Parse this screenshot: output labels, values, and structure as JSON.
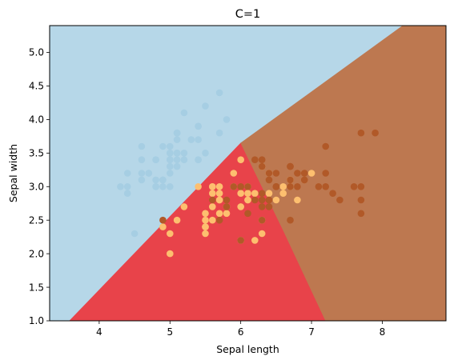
{
  "chart_data": {
    "type": "scatter",
    "title": "C=1",
    "xlabel": "Sepal length",
    "ylabel": "Sepal width",
    "xlim": [
      3.3,
      8.9
    ],
    "ylim": [
      1.0,
      5.4
    ],
    "xticks": [
      "4",
      "5",
      "6",
      "7",
      "8"
    ],
    "yticks": [
      "1.0",
      "1.5",
      "2.0",
      "2.5",
      "3.0",
      "3.5",
      "4.0",
      "4.5",
      "5.0"
    ],
    "grid": false,
    "regions": [
      {
        "class": "setosa",
        "color": "#b6d7e8",
        "polygon": [
          [
            3.3,
            1.0
          ],
          [
            3.3,
            5.4
          ],
          [
            4.32,
            5.4
          ],
          [
            8.29,
            5.4
          ],
          [
            6.0,
            3.65
          ],
          [
            3.58,
            1.0
          ]
        ]
      },
      {
        "class": "versicolor",
        "color": "#e8434a",
        "polygon": [
          [
            3.58,
            1.0
          ],
          [
            6.0,
            3.65
          ],
          [
            6.6,
            2.35
          ],
          [
            7.2,
            1.0
          ]
        ]
      },
      {
        "class": "virginica",
        "color": "#bd7850",
        "polygon": [
          [
            6.0,
            3.65
          ],
          [
            8.29,
            5.4
          ],
          [
            8.9,
            5.4
          ],
          [
            8.9,
            1.0
          ],
          [
            7.2,
            1.0
          ],
          [
            6.6,
            2.35
          ]
        ]
      }
    ],
    "series": [
      {
        "class": "setosa",
        "color": "#a6cee3",
        "points": [
          [
            5.1,
            3.5
          ],
          [
            4.9,
            3.0
          ],
          [
            4.7,
            3.2
          ],
          [
            4.6,
            3.1
          ],
          [
            5.0,
            3.6
          ],
          [
            5.4,
            3.9
          ],
          [
            4.6,
            3.4
          ],
          [
            5.0,
            3.4
          ],
          [
            4.4,
            2.9
          ],
          [
            4.9,
            3.1
          ],
          [
            5.4,
            3.7
          ],
          [
            4.8,
            3.4
          ],
          [
            4.8,
            3.0
          ],
          [
            4.3,
            3.0
          ],
          [
            5.8,
            4.0
          ],
          [
            5.7,
            4.4
          ],
          [
            5.4,
            3.9
          ],
          [
            5.1,
            3.5
          ],
          [
            5.7,
            3.8
          ],
          [
            5.1,
            3.8
          ],
          [
            5.4,
            3.4
          ],
          [
            5.1,
            3.7
          ],
          [
            4.6,
            3.6
          ],
          [
            5.1,
            3.3
          ],
          [
            4.8,
            3.4
          ],
          [
            5.0,
            3.0
          ],
          [
            5.0,
            3.4
          ],
          [
            5.2,
            3.5
          ],
          [
            5.2,
            3.4
          ],
          [
            4.7,
            3.2
          ],
          [
            4.8,
            3.1
          ],
          [
            5.4,
            3.4
          ],
          [
            5.2,
            4.1
          ],
          [
            5.5,
            4.2
          ],
          [
            4.9,
            3.1
          ],
          [
            5.0,
            3.2
          ],
          [
            5.5,
            3.5
          ],
          [
            4.9,
            3.6
          ],
          [
            4.4,
            3.0
          ],
          [
            5.1,
            3.4
          ],
          [
            5.0,
            3.5
          ],
          [
            4.5,
            2.3
          ],
          [
            4.4,
            3.2
          ],
          [
            5.0,
            3.5
          ],
          [
            5.1,
            3.8
          ],
          [
            4.8,
            3.0
          ],
          [
            5.1,
            3.8
          ],
          [
            4.6,
            3.2
          ],
          [
            5.3,
            3.7
          ],
          [
            5.0,
            3.3
          ]
        ]
      },
      {
        "class": "versicolor",
        "color": "#fdbf6f",
        "points": [
          [
            7.0,
            3.2
          ],
          [
            6.4,
            3.2
          ],
          [
            6.9,
            3.1
          ],
          [
            5.5,
            2.3
          ],
          [
            6.5,
            2.8
          ],
          [
            5.7,
            2.8
          ],
          [
            6.3,
            3.3
          ],
          [
            4.9,
            2.4
          ],
          [
            6.6,
            2.9
          ],
          [
            5.2,
            2.7
          ],
          [
            5.0,
            2.0
          ],
          [
            5.9,
            3.0
          ],
          [
            6.0,
            2.2
          ],
          [
            6.1,
            2.9
          ],
          [
            5.6,
            2.9
          ],
          [
            6.7,
            3.1
          ],
          [
            5.6,
            3.0
          ],
          [
            5.8,
            2.7
          ],
          [
            6.2,
            2.2
          ],
          [
            5.6,
            2.5
          ],
          [
            5.9,
            3.2
          ],
          [
            6.1,
            2.8
          ],
          [
            6.3,
            2.5
          ],
          [
            6.1,
            2.8
          ],
          [
            6.4,
            2.9
          ],
          [
            6.6,
            3.0
          ],
          [
            6.8,
            2.8
          ],
          [
            6.7,
            3.0
          ],
          [
            6.0,
            2.9
          ],
          [
            5.7,
            2.6
          ],
          [
            5.5,
            2.4
          ],
          [
            5.5,
            2.4
          ],
          [
            5.8,
            2.7
          ],
          [
            6.0,
            2.7
          ],
          [
            5.4,
            3.0
          ],
          [
            6.0,
            3.4
          ],
          [
            6.7,
            3.1
          ],
          [
            6.3,
            2.3
          ],
          [
            5.6,
            3.0
          ],
          [
            5.5,
            2.5
          ],
          [
            5.5,
            2.6
          ],
          [
            6.1,
            3.0
          ],
          [
            5.8,
            2.6
          ],
          [
            5.0,
            2.3
          ],
          [
            5.6,
            2.7
          ],
          [
            5.7,
            3.0
          ],
          [
            5.7,
            2.9
          ],
          [
            6.2,
            2.9
          ],
          [
            5.1,
            2.5
          ],
          [
            5.7,
            2.8
          ]
        ]
      },
      {
        "class": "virginica",
        "color": "#b15928",
        "points": [
          [
            6.3,
            3.3
          ],
          [
            5.8,
            2.7
          ],
          [
            7.1,
            3.0
          ],
          [
            6.3,
            2.9
          ],
          [
            6.5,
            3.0
          ],
          [
            7.6,
            3.0
          ],
          [
            4.9,
            2.5
          ],
          [
            7.3,
            2.9
          ],
          [
            6.7,
            2.5
          ],
          [
            7.2,
            3.6
          ],
          [
            6.5,
            3.2
          ],
          [
            6.4,
            2.7
          ],
          [
            6.8,
            3.0
          ],
          [
            5.7,
            2.5
          ],
          [
            5.8,
            2.8
          ],
          [
            6.4,
            3.2
          ],
          [
            6.5,
            3.0
          ],
          [
            7.7,
            3.8
          ],
          [
            7.7,
            2.6
          ],
          [
            6.0,
            2.2
          ],
          [
            6.9,
            3.2
          ],
          [
            5.6,
            2.8
          ],
          [
            7.7,
            2.8
          ],
          [
            6.3,
            2.7
          ],
          [
            6.7,
            3.3
          ],
          [
            7.2,
            3.2
          ],
          [
            6.2,
            2.8
          ],
          [
            6.1,
            3.0
          ],
          [
            6.4,
            2.8
          ],
          [
            7.2,
            3.0
          ],
          [
            7.4,
            2.8
          ],
          [
            7.9,
            3.8
          ],
          [
            6.4,
            2.8
          ],
          [
            6.3,
            2.8
          ],
          [
            6.1,
            2.6
          ],
          [
            7.7,
            3.0
          ],
          [
            6.3,
            3.4
          ],
          [
            6.4,
            3.1
          ],
          [
            6.0,
            3.0
          ],
          [
            6.9,
            3.1
          ],
          [
            6.7,
            3.1
          ],
          [
            6.9,
            3.1
          ],
          [
            5.8,
            2.7
          ],
          [
            6.8,
            3.2
          ],
          [
            6.7,
            3.3
          ],
          [
            6.7,
            3.0
          ],
          [
            6.3,
            2.5
          ],
          [
            6.5,
            3.0
          ],
          [
            6.2,
            3.4
          ],
          [
            5.9,
            3.0
          ]
        ]
      }
    ]
  }
}
